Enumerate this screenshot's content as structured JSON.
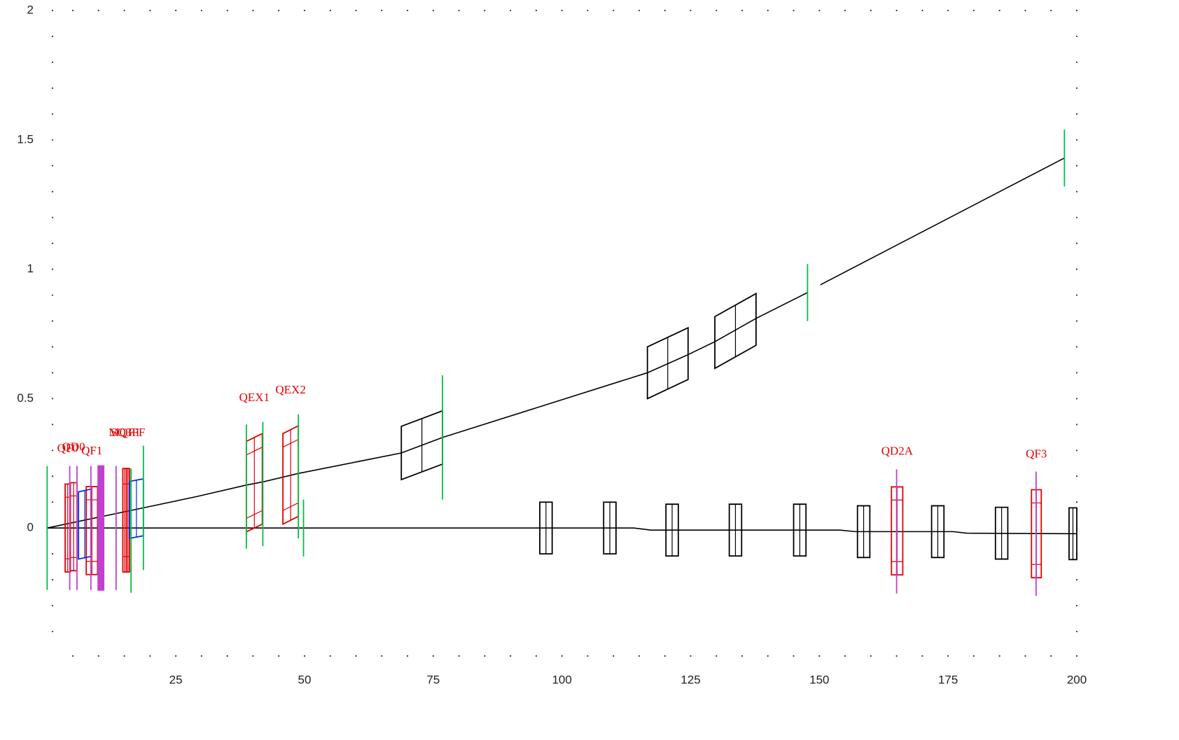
{
  "chart_data": {
    "type": "beamline",
    "xlim": [
      0,
      200
    ],
    "ylim": [
      -0.5,
      2
    ],
    "xticks": [
      25,
      50,
      75,
      100,
      125,
      150,
      175,
      200
    ],
    "yticks": [
      0,
      0.5,
      1,
      1.5,
      2
    ],
    "grid": "dotted",
    "lines": [
      {
        "color": "#000000",
        "x": [
          0,
          18.7,
          28.7,
          38.5,
          42.3,
          48.6,
          68.8,
          76.8,
          116.6,
          124.5,
          129.7,
          137.7,
          147.7,
          149,
          150.2,
          197.6
        ],
        "y": [
          0,
          0.078,
          0.12,
          0.165,
          0.18,
          0.21,
          0.29,
          0.35,
          0.6,
          0.67,
          0.72,
          0.81,
          0.91,
          null,
          0.94,
          1.43
        ]
      },
      {
        "color": "#000000",
        "x": [
          0,
          114,
          117.3,
          154,
          157,
          176,
          178.6,
          200
        ],
        "y": [
          0,
          0,
          -0.008,
          -0.008,
          -0.014,
          -0.014,
          -0.02,
          -0.022
        ]
      }
    ],
    "colors": {
      "quad": "#e00000",
      "bend": "#000000",
      "sext": "#0030e0",
      "marker": "#00c040",
      "mag": "#c040d0"
    },
    "elements": [
      {
        "kind": "quad",
        "label": "QF0",
        "x": [
          3.5,
          4.5
        ],
        "y": [
          0,
          0
        ],
        "h": 0.17
      },
      {
        "kind": "quad",
        "label": "QD0",
        "x": [
          4.5,
          5.8
        ],
        "y": [
          0.005,
          0.005
        ],
        "h": 0.17
      },
      {
        "kind": "quad",
        "label": "QF1",
        "x": [
          7.6,
          9.8
        ],
        "y": [
          -0.01,
          -0.01
        ],
        "h": 0.17
      },
      {
        "kind": "quad",
        "label": "MQF1",
        "x": [
          14.7,
          15.4
        ],
        "y": [
          0.03,
          0.03
        ],
        "h": 0.2
      },
      {
        "kind": "quad",
        "label": "SQ3FF",
        "x": [
          15.4,
          16
        ],
        "y": [
          0.03,
          0.03
        ],
        "h": 0.2
      },
      {
        "kind": "quad",
        "label": "QEX1",
        "x": [
          38.7,
          41.8
        ],
        "y": [
          0.16,
          0.19
        ],
        "h": 0.175
      },
      {
        "kind": "quad",
        "label": "QEX2",
        "x": [
          45.8,
          48.8
        ],
        "y": [
          0.19,
          0.22
        ],
        "h": 0.175
      },
      {
        "kind": "quad",
        "label": "QD2A",
        "x": [
          164,
          166.2
        ],
        "y": [
          -0.011,
          -0.011
        ],
        "h": 0.17
      },
      {
        "kind": "quad",
        "label": "QF3",
        "x": [
          191.2,
          193.1
        ],
        "y": [
          -0.022,
          -0.022
        ],
        "h": 0.17
      },
      {
        "kind": "sext",
        "x": [
          6.1,
          8.5
        ],
        "y": [
          0.01,
          0.02
        ],
        "h": 0.13
      },
      {
        "kind": "sext",
        "x": [
          16,
          18.7
        ],
        "y": [
          0.07,
          0.08
        ],
        "h": 0.11
      },
      {
        "kind": "bend",
        "x": [
          68.8,
          76.8
        ],
        "y": [
          0.29,
          0.35
        ],
        "h": 0.103
      },
      {
        "kind": "bend",
        "x": [
          116.6,
          124.5
        ],
        "y": [
          0.6,
          0.674
        ],
        "h": 0.1
      },
      {
        "kind": "bend",
        "x": [
          129.7,
          137.7
        ],
        "y": [
          0.717,
          0.806
        ],
        "h": 0.1
      },
      {
        "kind": "bend",
        "x": [
          95.7,
          98.1
        ],
        "y": [
          0,
          0
        ],
        "h": 0.1
      },
      {
        "kind": "bend",
        "x": [
          108.1,
          110.5
        ],
        "y": [
          0,
          0
        ],
        "h": 0.1
      },
      {
        "kind": "bend",
        "x": [
          120.2,
          122.6
        ],
        "y": [
          -0.008,
          -0.008
        ],
        "h": 0.1
      },
      {
        "kind": "bend",
        "x": [
          132.5,
          134.9
        ],
        "y": [
          -0.008,
          -0.008
        ],
        "h": 0.1
      },
      {
        "kind": "bend",
        "x": [
          145,
          147.4
        ],
        "y": [
          -0.008,
          -0.008
        ],
        "h": 0.1
      },
      {
        "kind": "bend",
        "x": [
          157.4,
          159.8
        ],
        "y": [
          -0.014,
          -0.014
        ],
        "h": 0.1
      },
      {
        "kind": "bend",
        "x": [
          171.8,
          174.2
        ],
        "y": [
          -0.014,
          -0.014
        ],
        "h": 0.1
      },
      {
        "kind": "bend",
        "x": [
          184.2,
          186.6
        ],
        "y": [
          -0.02,
          -0.02
        ],
        "h": 0.1
      },
      {
        "kind": "bend",
        "x": [
          198.5,
          200
        ],
        "y": [
          -0.022,
          -0.022
        ],
        "h": 0.1
      },
      {
        "kind": "marker",
        "x": [
          0,
          0
        ],
        "y": [
          0,
          0
        ],
        "h": 0.24
      },
      {
        "kind": "marker",
        "x": [
          16.3,
          16.3
        ],
        "y": [
          -0.01,
          -0.01
        ],
        "h": 0.24
      },
      {
        "kind": "marker",
        "x": [
          18.7,
          18.7
        ],
        "y": [
          0.078,
          0.078
        ],
        "h": 0.24
      },
      {
        "kind": "marker",
        "x": [
          38.7,
          38.7
        ],
        "y": [
          0.16,
          0.16
        ],
        "h": 0.24
      },
      {
        "kind": "marker",
        "x": [
          41.9,
          41.9
        ],
        "y": [
          0.17,
          0.17
        ],
        "h": 0.24
      },
      {
        "kind": "marker",
        "x": [
          48.8,
          48.8
        ],
        "y": [
          0.2,
          0.2
        ],
        "h": 0.24
      },
      {
        "kind": "marker",
        "x": [
          49.8,
          49.8
        ],
        "y": [
          0,
          0
        ],
        "h": 0.11
      },
      {
        "kind": "marker",
        "x": [
          76.8,
          76.8
        ],
        "y": [
          0.35,
          0.35
        ],
        "h": 0.24
      },
      {
        "kind": "marker",
        "x": [
          147.7,
          147.7
        ],
        "y": [
          0.91,
          0.91
        ],
        "h": 0.11
      },
      {
        "kind": "marker",
        "x": [
          197.6,
          197.6
        ],
        "y": [
          1.43,
          1.43
        ],
        "h": 0.11
      },
      {
        "kind": "mag",
        "x": [
          4.4,
          4.4
        ],
        "y": [
          0,
          0
        ],
        "h": 0.24
      },
      {
        "kind": "mag",
        "x": [
          5.8,
          5.8
        ],
        "y": [
          0,
          0
        ],
        "h": 0.24
      },
      {
        "kind": "mag",
        "x": [
          8.5,
          8.5
        ],
        "y": [
          0,
          0
        ],
        "h": 0.24
      },
      {
        "kind": "mag",
        "x": [
          9.9,
          11
        ],
        "y": [
          0,
          0
        ],
        "h": 0.24
      },
      {
        "kind": "mag",
        "x": [
          13.4,
          13.4
        ],
        "y": [
          0,
          0
        ],
        "h": 0.24
      },
      {
        "kind": "mag",
        "x": [
          165,
          165
        ],
        "y": [
          -0.013,
          -0.013
        ],
        "h": 0.24
      },
      {
        "kind": "mag",
        "x": [
          192.1,
          192.1
        ],
        "y": [
          -0.022,
          -0.022
        ],
        "h": 0.24
      }
    ]
  }
}
